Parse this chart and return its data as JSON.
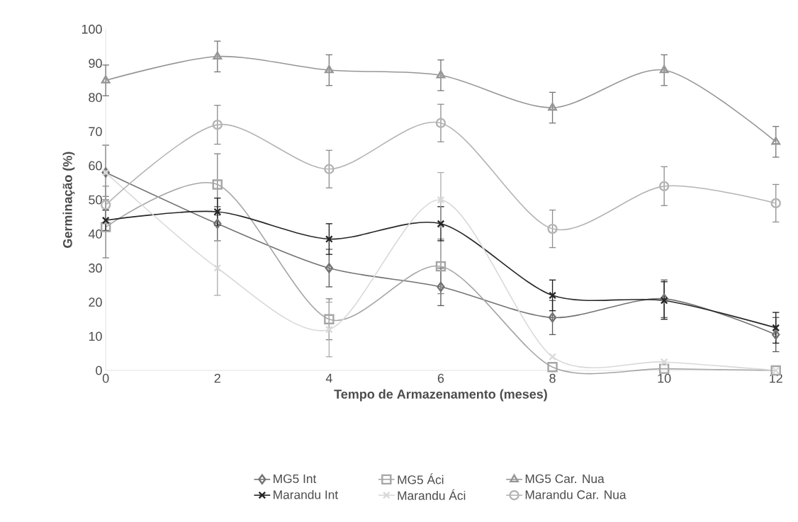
{
  "chart_data": {
    "type": "line",
    "xlabel": "Tempo de Armazenamento (meses)",
    "ylabel": "Germinação (%)",
    "x": [
      0,
      2,
      4,
      6,
      8,
      10,
      12
    ],
    "xlim": [
      0,
      12
    ],
    "xticks": [
      0,
      2,
      4,
      6,
      8,
      10,
      12
    ],
    "ylim": [
      0,
      100
    ],
    "yticks": [
      0,
      10,
      20,
      30,
      40,
      50,
      60,
      70,
      80,
      90,
      100
    ],
    "grid": false,
    "legend": "bottom",
    "line_style": "solid",
    "series": [
      {
        "name": "MG5 Int",
        "color": "#737373",
        "marker": "diamond",
        "values": [
          58,
          43,
          30,
          24.5,
          15.5,
          21,
          10.5
        ],
        "errors": [
          8,
          5,
          5.5,
          5.5,
          5,
          5.5,
          5
        ]
      },
      {
        "name": "MG5 Áci",
        "color": "#a6a6a6",
        "marker": "square",
        "values": [
          42,
          54.5,
          15,
          30.5,
          1,
          0.5,
          0
        ],
        "errors": [
          9,
          9,
          6,
          8,
          null,
          null,
          null
        ]
      },
      {
        "name": "MG5 Car. Nua",
        "color": "#969696",
        "marker": "triangle",
        "values": [
          85,
          92,
          88,
          86.5,
          77,
          88,
          67
        ],
        "errors": [
          4.5,
          4.5,
          4.5,
          4.5,
          4.5,
          4.5,
          4.5
        ]
      },
      {
        "name": "Marandu Int",
        "color": "#262626",
        "marker": "cross",
        "values": [
          44,
          46.5,
          38.5,
          43,
          22,
          20.5,
          12.5
        ],
        "errors": [
          3,
          4,
          4.5,
          5,
          4.5,
          5.5,
          4.5
        ]
      },
      {
        "name": "Marandu Áci",
        "color": "#d9d9d9",
        "marker": "cross",
        "values": [
          58,
          30,
          12,
          50,
          4,
          2.5,
          0
        ],
        "errors": [
          8,
          8,
          8,
          8,
          null,
          null,
          null
        ]
      },
      {
        "name": "Marandu Car. Nua",
        "color": "#b4b4b4",
        "marker": "circle",
        "values": [
          48.5,
          72,
          59,
          72.5,
          41.5,
          54,
          49
        ],
        "errors": [
          5.5,
          5.7,
          5.5,
          5.5,
          5.5,
          5.7,
          5.5
        ]
      }
    ]
  }
}
